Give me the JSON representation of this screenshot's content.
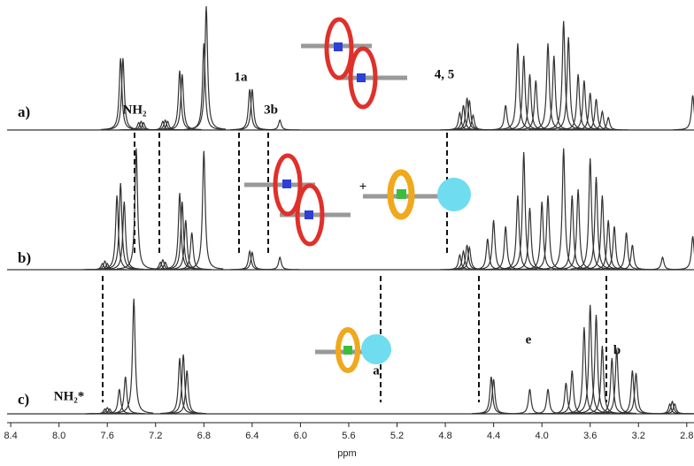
{
  "chart_data": {
    "type": "line",
    "xlabel": "ppm",
    "xlim": [
      8.43,
      2.74
    ],
    "xticks": [
      8.4,
      {
        "value": 8,
        "label": "8.0"
      },
      7.6,
      7.2,
      6.8,
      6.4,
      {
        "value": 6,
        "label": "6.0"
      },
      5.6,
      5.2,
      4.8,
      4.4,
      {
        "value": 4,
        "label": "4.0"
      },
      3.6,
      3.2,
      2.8
    ],
    "ylim": [
      0,
      100
    ],
    "series": [
      {
        "name": "a)",
        "color": "#333333",
        "x": [
          7.49,
          7.47,
          7.34,
          7.32,
          7.3,
          7.14,
          7.12,
          7.1,
          7.0,
          6.98,
          6.8,
          6.78,
          6.42,
          6.4,
          6.17,
          4.68,
          4.65,
          4.62,
          4.6,
          4.57,
          4.3,
          4.2,
          4.15,
          4.1,
          4.05,
          3.95,
          3.9,
          3.82,
          3.78,
          3.7,
          3.65,
          3.6,
          3.55,
          3.5,
          3.45,
          2.75
        ],
        "values": [
          58,
          58,
          6,
          7,
          6,
          7,
          8,
          7,
          48,
          45,
          70,
          100,
          33,
          33,
          8,
          14,
          20,
          26,
          24,
          12,
          20,
          70,
          60,
          45,
          40,
          70,
          60,
          88,
          75,
          45,
          40,
          30,
          25,
          15,
          10,
          28
        ]
      },
      {
        "name": "b)",
        "color": "#333333",
        "x": [
          7.64,
          7.62,
          7.6,
          7.52,
          7.49,
          7.46,
          7.36,
          7.16,
          7.14,
          7.12,
          7.0,
          6.98,
          6.95,
          6.9,
          6.8,
          6.42,
          6.4,
          6.17,
          4.68,
          4.65,
          4.62,
          4.6,
          4.45,
          4.4,
          4.3,
          4.2,
          4.15,
          4.1,
          4.0,
          3.95,
          3.82,
          3.75,
          3.7,
          3.6,
          3.55,
          3.5,
          3.45,
          3.4,
          3.3,
          3.25,
          3.0,
          2.75
        ],
        "values": [
          5,
          7,
          5,
          60,
          70,
          55,
          98,
          6,
          8,
          6,
          62,
          55,
          40,
          30,
          96,
          15,
          14,
          10,
          12,
          15,
          20,
          18,
          25,
          40,
          35,
          60,
          95,
          50,
          55,
          60,
          98,
          60,
          65,
          90,
          75,
          60,
          40,
          35,
          30,
          20,
          10,
          27
        ]
      },
      {
        "name": "c)",
        "color": "#333333",
        "x": [
          7.62,
          7.6,
          7.58,
          7.5,
          7.45,
          7.38,
          7.0,
          6.97,
          6.94,
          4.42,
          4.4,
          4.1,
          3.95,
          3.8,
          3.75,
          3.65,
          3.6,
          3.55,
          3.5,
          3.42,
          3.38,
          3.25,
          3.22,
          2.94,
          2.92,
          2.9
        ],
        "values": [
          4,
          5,
          4,
          20,
          30,
          93,
          45,
          48,
          35,
          30,
          28,
          20,
          20,
          25,
          35,
          70,
          88,
          80,
          55,
          45,
          52,
          35,
          33,
          8,
          10,
          8
        ]
      }
    ],
    "annotations": [
      "NH₂",
      "1a",
      "3b",
      "4, 5",
      "+",
      "NH₂*",
      "a",
      "e",
      "b"
    ]
  }
}
